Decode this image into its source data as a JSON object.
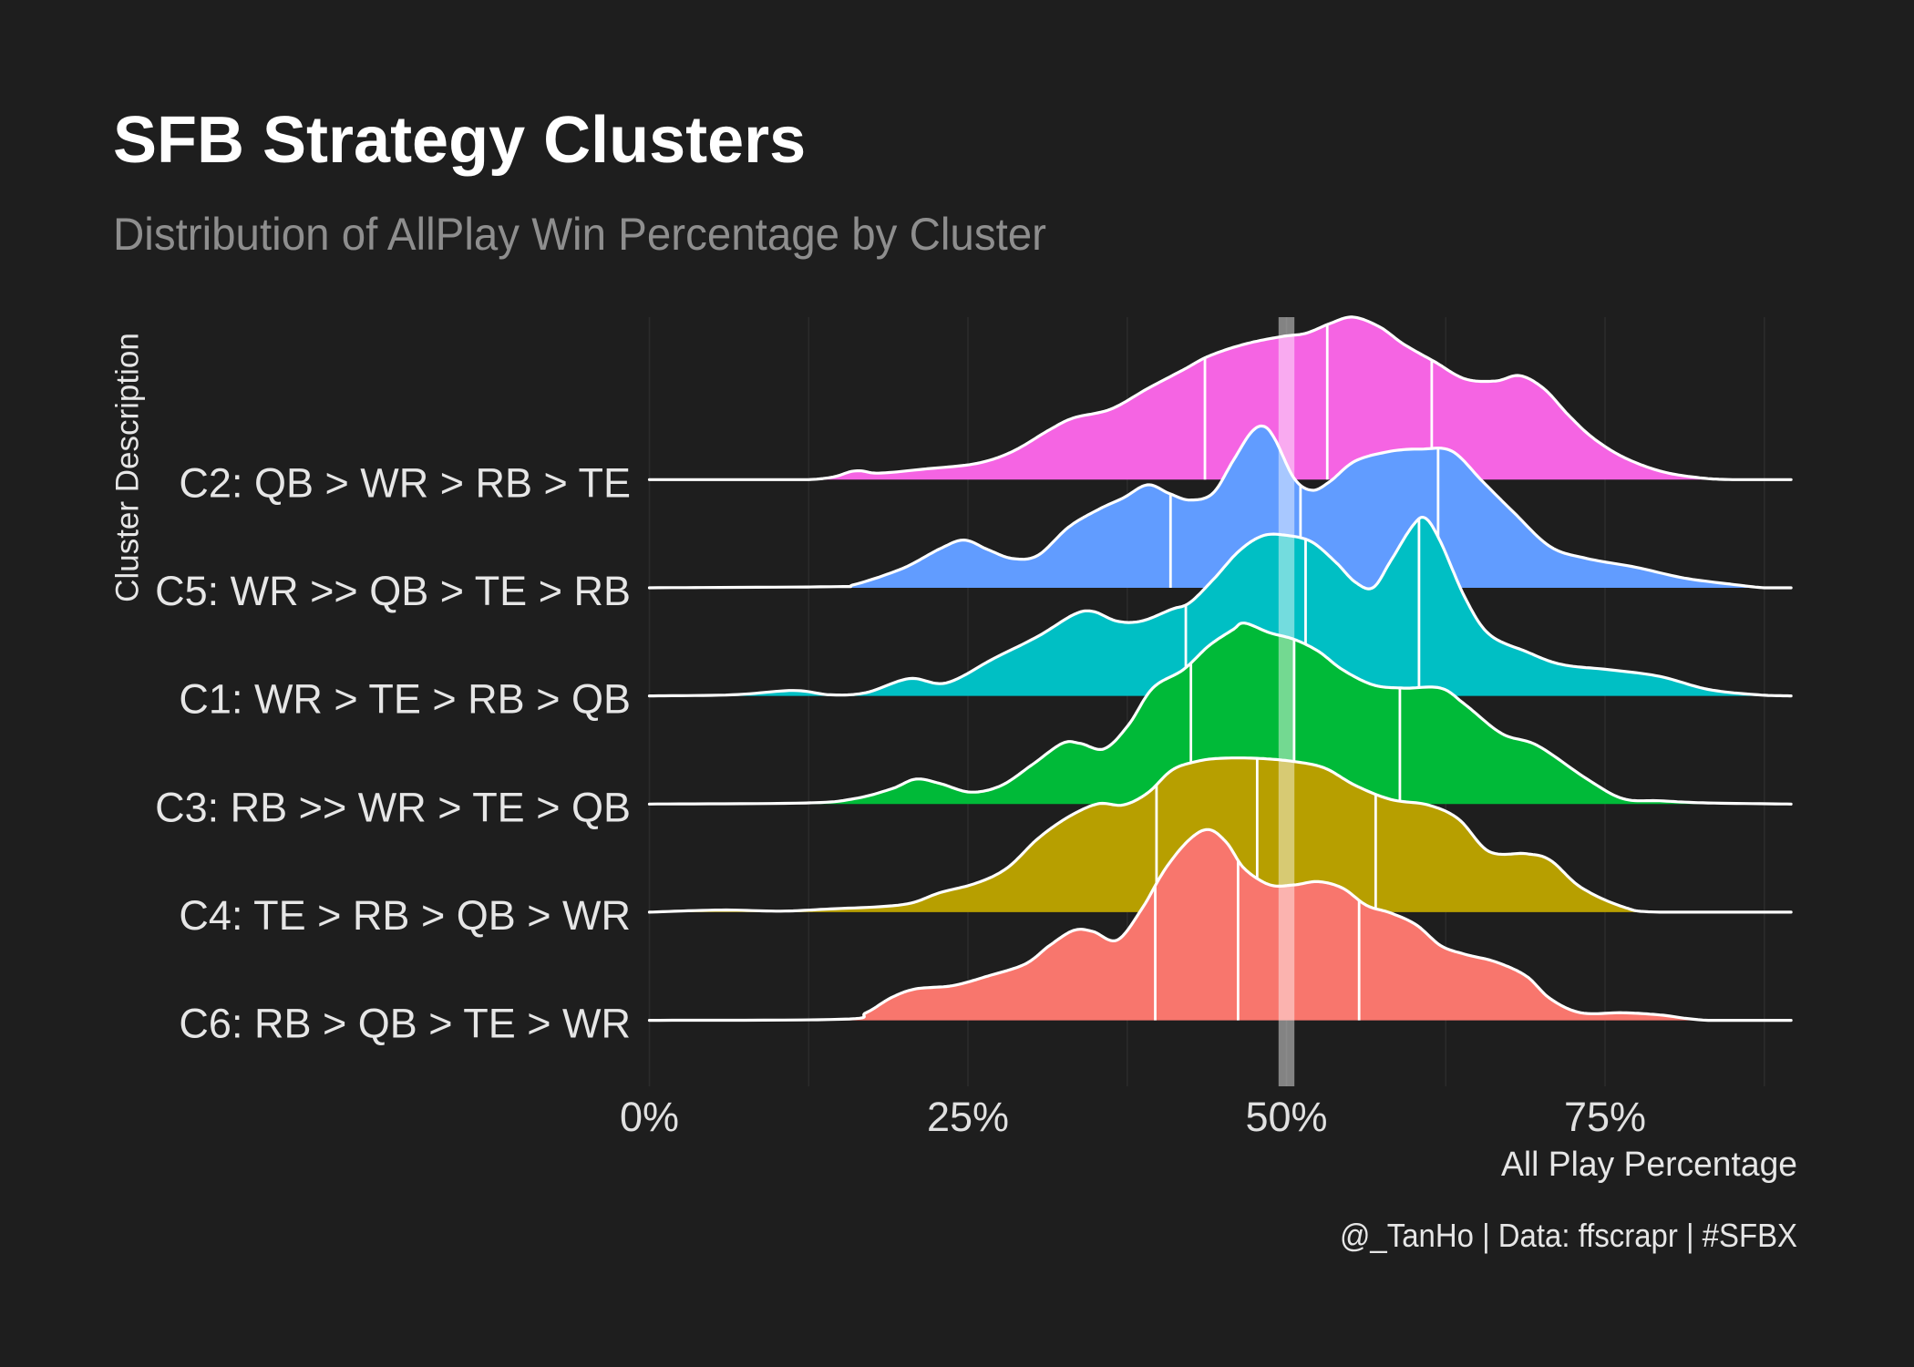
{
  "title": "SFB Strategy Clusters",
  "subtitle": "Distribution of AllPlay Win Percentage by Cluster",
  "caption": "@_TanHo | Data: ffscrapr | #SFBX",
  "colors": {
    "background": "#1e1e1e",
    "outline": "#ffffff",
    "reference_band": "#ffffff"
  },
  "chart_data": {
    "type": "area",
    "xlabel": "All Play Percentage",
    "ylabel": "Cluster Description",
    "x_ticks": [
      "0%",
      "25%",
      "50%",
      "75%"
    ],
    "x_tick_values": [
      0,
      25,
      50,
      75
    ],
    "xlim": [
      0,
      89.6
    ],
    "grid": true,
    "reference_line_x": 50,
    "series": [
      {
        "name": "C2: QB > WR > RB > TE",
        "color": "#F564E3",
        "x": [
          0,
          12.5,
          16.1,
          18,
          21.8,
          25.7,
          28.5,
          31.4,
          33.3,
          36.2,
          39.1,
          42,
          43.9,
          46.7,
          49.6,
          51.5,
          53.4,
          55.2,
          57.3,
          59.2,
          61.6,
          64,
          66.4,
          68.3,
          70.2,
          72.1,
          74,
          76.4,
          79.3,
          82.2,
          85,
          89.6
        ],
        "density": [
          0,
          0,
          0.08,
          0.06,
          0.1,
          0.15,
          0.26,
          0.46,
          0.57,
          0.65,
          0.84,
          1.02,
          1.14,
          1.25,
          1.32,
          1.35,
          1.44,
          1.5,
          1.41,
          1.25,
          1.09,
          0.93,
          0.91,
          0.96,
          0.84,
          0.6,
          0.39,
          0.21,
          0.08,
          0.02,
          0,
          0
        ],
        "quartiles": [
          43.6,
          53.2,
          61.4
        ]
      },
      {
        "name": "C5: WR >> QB > TE > RB",
        "color": "#619CFF",
        "x": [
          0,
          14.2,
          16.1,
          19.9,
          22.8,
          24.7,
          26.6,
          28.5,
          30.5,
          32.9,
          35.2,
          37.2,
          39.1,
          40.8,
          42.4,
          44.2,
          45.8,
          47.2,
          48.2,
          49.1,
          50.6,
          52,
          53.4,
          55.4,
          58.2,
          60.6,
          63,
          65.4,
          67.8,
          70.7,
          73.6,
          77.4,
          81.2,
          85.1,
          87.5,
          89.6
        ],
        "density": [
          0,
          0.01,
          0.03,
          0.18,
          0.36,
          0.44,
          0.35,
          0.27,
          0.3,
          0.56,
          0.72,
          0.83,
          0.95,
          0.87,
          0.81,
          0.87,
          1.17,
          1.43,
          1.49,
          1.37,
          1.01,
          0.9,
          0.98,
          1.17,
          1.26,
          1.28,
          1.26,
          0.98,
          0.7,
          0.38,
          0.27,
          0.19,
          0.09,
          0.03,
          0,
          0
        ],
        "quartiles": [
          40.9,
          51.1,
          61.9
        ]
      },
      {
        "name": "C1: WR > TE > RB > QB",
        "color": "#00BFC4",
        "x": [
          0,
          6.5,
          11.3,
          14.2,
          17,
          20.4,
          23.3,
          27.1,
          30.5,
          33.3,
          34.8,
          36.7,
          38.6,
          41,
          42.4,
          44.3,
          46.3,
          48.2,
          50.1,
          52,
          53.9,
          55.4,
          56.8,
          58.2,
          59.9,
          60.9,
          62.1,
          64,
          65.9,
          68.8,
          71.6,
          75.5,
          79.3,
          83.1,
          87,
          89.6
        ],
        "density": [
          0,
          0.01,
          0.05,
          0.01,
          0.03,
          0.16,
          0.12,
          0.35,
          0.55,
          0.75,
          0.78,
          0.69,
          0.69,
          0.8,
          0.86,
          1.08,
          1.34,
          1.48,
          1.48,
          1.42,
          1.23,
          1.05,
          1.0,
          1.25,
          1.57,
          1.64,
          1.42,
          0.91,
          0.57,
          0.41,
          0.29,
          0.24,
          0.18,
          0.06,
          0.01,
          0
        ],
        "quartiles": [
          42.1,
          51.5,
          60.4
        ]
      },
      {
        "name": "C3: RB >> WR > TE > QB",
        "color": "#00BA38",
        "x": [
          0,
          12.3,
          16.1,
          19,
          20.9,
          22.8,
          25.2,
          27.6,
          30,
          32.4,
          33.8,
          35.7,
          37.6,
          39.5,
          41.9,
          43.9,
          45.8,
          46.7,
          48.7,
          50.6,
          52.5,
          54.4,
          56.8,
          59.2,
          62.1,
          64,
          66.9,
          69.7,
          73.6,
          76.4,
          79.3,
          83.1,
          89.6
        ],
        "density": [
          0,
          0.01,
          0.05,
          0.14,
          0.23,
          0.19,
          0.11,
          0.17,
          0.36,
          0.56,
          0.56,
          0.51,
          0.73,
          1.07,
          1.24,
          1.46,
          1.61,
          1.67,
          1.58,
          1.52,
          1.41,
          1.24,
          1.1,
          1.07,
          1.07,
          0.92,
          0.65,
          0.54,
          0.23,
          0.05,
          0.03,
          0.01,
          0
        ],
        "quartiles": [
          42.5,
          50.6,
          58.9
        ]
      },
      {
        "name": "C4: TE > RB > QB > WR",
        "color": "#B79F00",
        "x": [
          0,
          5.6,
          10.3,
          14.2,
          19.9,
          22.8,
          25.7,
          28.1,
          30.5,
          32.9,
          35.2,
          37.2,
          39.1,
          41,
          42.9,
          44.8,
          47.7,
          50.6,
          53,
          55.4,
          58.2,
          61.1,
          63.5,
          65.9,
          68.8,
          70.7,
          73.1,
          76.4,
          79.3,
          89.6
        ],
        "density": [
          0,
          0.02,
          0.01,
          0.03,
          0.07,
          0.18,
          0.27,
          0.41,
          0.68,
          0.88,
          1.0,
          0.99,
          1.1,
          1.31,
          1.39,
          1.42,
          1.42,
          1.39,
          1.33,
          1.17,
          1.04,
          0.99,
          0.86,
          0.56,
          0.54,
          0.48,
          0.23,
          0.05,
          0,
          0
        ],
        "quartiles": [
          39.8,
          47.7,
          57.0
        ]
      },
      {
        "name": "C6: RB > QB > TE > WR",
        "color": "#F8766D",
        "x": [
          0,
          15.1,
          17,
          19,
          20.9,
          23.8,
          26.6,
          29.5,
          31.4,
          33.3,
          34.8,
          36.7,
          38.6,
          40.5,
          42.4,
          43.9,
          45.3,
          46.7,
          48.7,
          50.6,
          52.5,
          54.4,
          56.3,
          58.2,
          60.2,
          62.1,
          64,
          66.4,
          68.8,
          70.7,
          73.1,
          76.4,
          79.3,
          83.1,
          89.6
        ],
        "density": [
          0,
          0.01,
          0.07,
          0.21,
          0.29,
          0.32,
          0.41,
          0.52,
          0.69,
          0.83,
          0.82,
          0.74,
          1.02,
          1.4,
          1.67,
          1.76,
          1.64,
          1.4,
          1.25,
          1.25,
          1.28,
          1.22,
          1.06,
          0.99,
          0.88,
          0.69,
          0.61,
          0.54,
          0.41,
          0.2,
          0.07,
          0.07,
          0.05,
          0,
          0
        ],
        "quartiles": [
          39.7,
          46.2,
          55.7
        ]
      }
    ]
  }
}
